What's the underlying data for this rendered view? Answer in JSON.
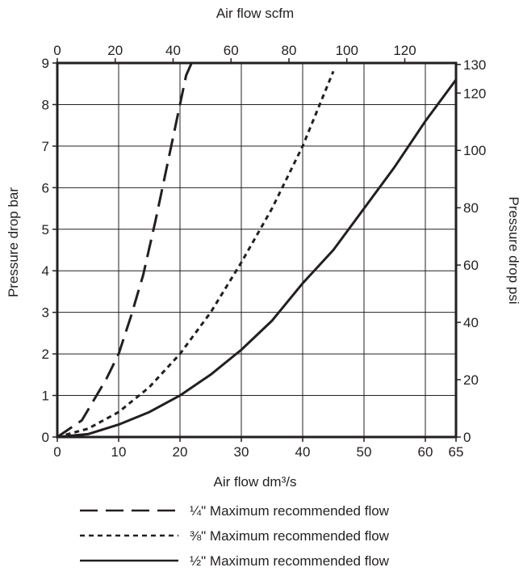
{
  "chart_data": {
    "type": "line",
    "title": "",
    "xlabel": "Air flow dm³/s",
    "ylabel": "Pressure drop bar",
    "x2label": "Air flow scfm",
    "y2label": "Pressure drop psi",
    "xlim": [
      0,
      65
    ],
    "ylim": [
      0,
      9
    ],
    "x2lim": [
      0,
      137.7
    ],
    "y2lim": [
      0,
      130.5
    ],
    "grid": true,
    "legend_position": "bottom",
    "xticks": [
      0,
      10,
      20,
      30,
      40,
      50,
      60,
      65
    ],
    "yticks": [
      0,
      1,
      2,
      3,
      4,
      5,
      6,
      7,
      8,
      9
    ],
    "x2ticks": [
      0,
      20,
      40,
      60,
      80,
      100,
      120
    ],
    "y2ticks": [
      0,
      20,
      40,
      60,
      80,
      100,
      120,
      130
    ],
    "series": [
      {
        "name": "¼\" Maximum recommended flow",
        "dash": "long-dash",
        "points": [
          [
            0,
            0
          ],
          [
            4,
            0.4
          ],
          [
            6,
            0.9
          ],
          [
            8,
            1.4
          ],
          [
            10,
            2.0
          ],
          [
            12,
            2.9
          ],
          [
            14,
            3.9
          ],
          [
            16,
            5.2
          ],
          [
            18,
            6.6
          ],
          [
            20,
            8.0
          ],
          [
            21,
            8.7
          ],
          [
            21.9,
            9.0
          ]
        ]
      },
      {
        "name": "⅜\" Maximum recommended flow",
        "dash": "short-dash",
        "points": [
          [
            0,
            0
          ],
          [
            5,
            0.2
          ],
          [
            10,
            0.6
          ],
          [
            15,
            1.2
          ],
          [
            20,
            2.0
          ],
          [
            25,
            3.0
          ],
          [
            30,
            4.2
          ],
          [
            35,
            5.5
          ],
          [
            40,
            7.0
          ],
          [
            45,
            8.8
          ]
        ]
      },
      {
        "name": "½\" Maximum recommended flow",
        "dash": "solid",
        "points": [
          [
            0,
            0
          ],
          [
            5,
            0.07
          ],
          [
            10,
            0.3
          ],
          [
            15,
            0.6
          ],
          [
            20,
            1.0
          ],
          [
            25,
            1.5
          ],
          [
            30,
            2.1
          ],
          [
            35,
            2.8
          ],
          [
            40,
            3.7
          ],
          [
            45,
            4.5
          ],
          [
            50,
            5.5
          ],
          [
            55,
            6.5
          ],
          [
            60,
            7.6
          ],
          [
            65,
            8.6
          ]
        ]
      }
    ]
  }
}
